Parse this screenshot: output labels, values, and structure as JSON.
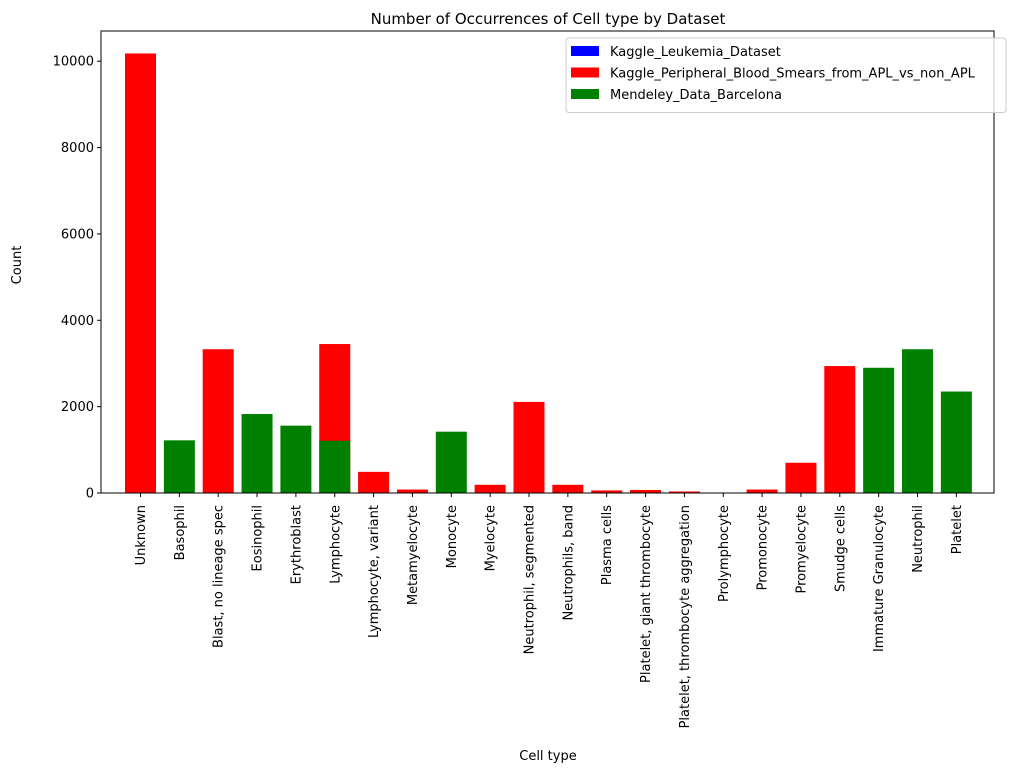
{
  "chart_data": {
    "type": "bar",
    "title": "Number of Occurrences of Cell type by Dataset",
    "xlabel": "Cell type",
    "ylabel": "Count",
    "ylim": [
      0,
      10700
    ],
    "yticks": [
      0,
      2000,
      4000,
      6000,
      8000,
      10000
    ],
    "yticklabels": [
      "0",
      "2000",
      "4000",
      "6000",
      "8000",
      "10000"
    ],
    "grid": false,
    "legend_position": "top-right",
    "categories": [
      "Unknown",
      "Basophil",
      "Blast, no lineage spec",
      "Eosinophil",
      "Erythroblast",
      "Lymphocyte",
      "Lymphocyte, variant",
      "Metamyelocyte",
      "Monocyte",
      "Myelocyte",
      "Neutrophil, segmented",
      "Neutrophils, band",
      "Plasma cells",
      "Platelet, giant thrombocyte",
      "Platelet, thrombocyte aggregation",
      "Prolymphocyte",
      "Promonocyte",
      "Promyelocyte",
      "Smudge cells",
      "Immature Granulocyte",
      "Neutrophil",
      "Platelet"
    ],
    "series": [
      {
        "name": "Kaggle_Leukemia_Dataset",
        "color": "#0000ff",
        "values": [
          0,
          0,
          0,
          0,
          0,
          0,
          0,
          0,
          0,
          0,
          0,
          0,
          0,
          0,
          0,
          0,
          0,
          0,
          0,
          0,
          0,
          0
        ]
      },
      {
        "name": "Kaggle_Peripheral_Blood_Smears_from_APL_vs_non_APL",
        "color": "#ff0000",
        "values": [
          10180,
          0,
          3330,
          0,
          0,
          3450,
          490,
          80,
          0,
          190,
          2110,
          190,
          60,
          70,
          35,
          10,
          80,
          700,
          2940,
          0,
          0,
          0
        ]
      },
      {
        "name": "Mendeley_Data_Barcelona",
        "color": "#008000",
        "values": [
          0,
          1220,
          0,
          1830,
          1560,
          1210,
          0,
          0,
          1420,
          0,
          0,
          0,
          0,
          0,
          0,
          0,
          0,
          0,
          0,
          2900,
          3330,
          2350
        ]
      }
    ]
  }
}
